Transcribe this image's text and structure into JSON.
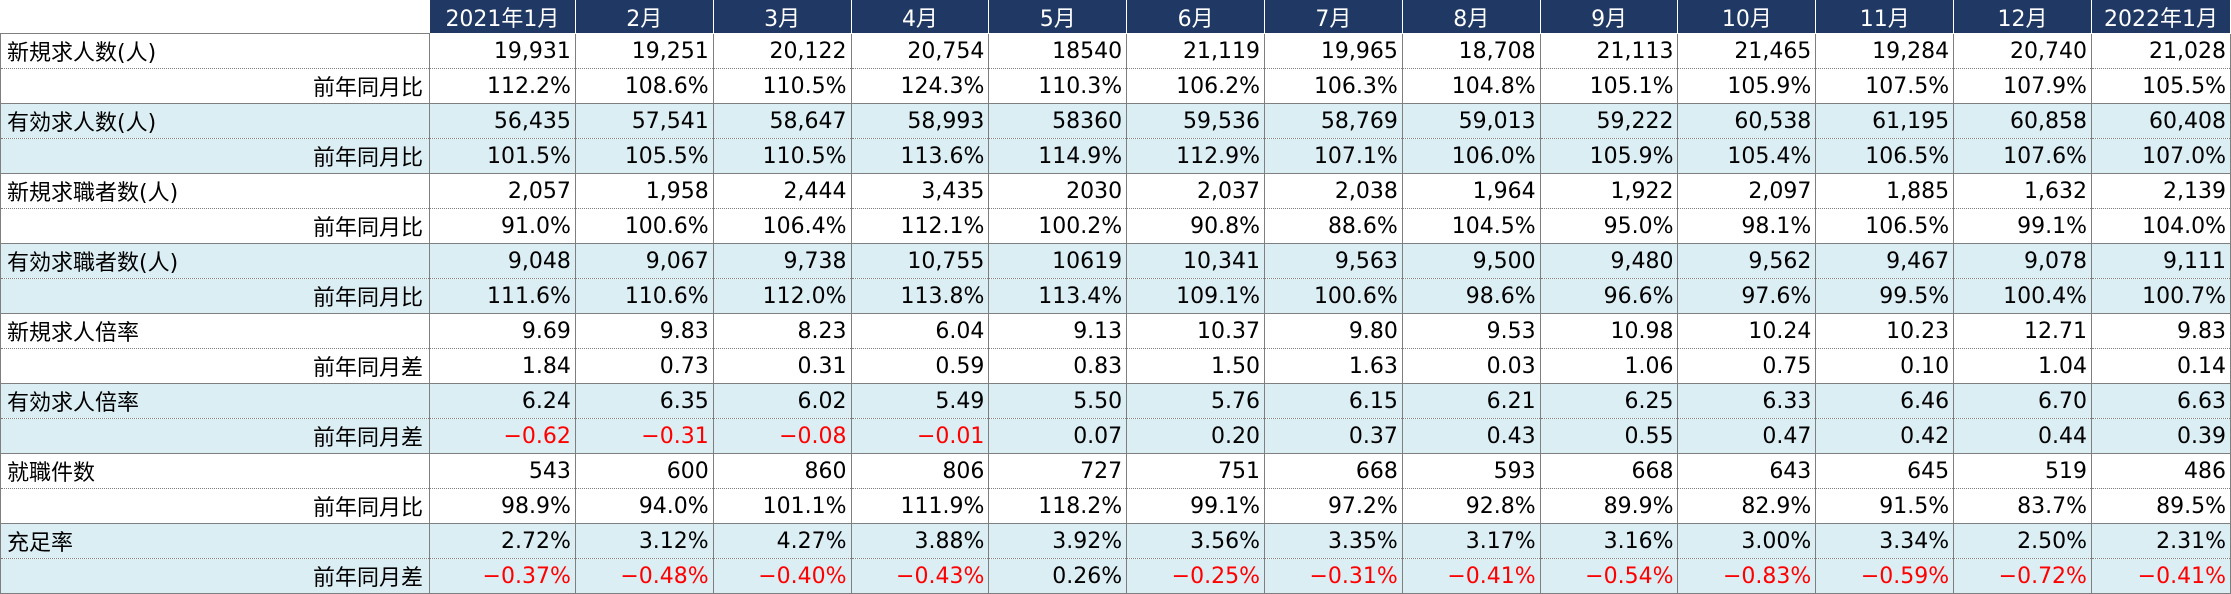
{
  "chart_data": {
    "type": "table",
    "columns": [
      "2021年1月",
      "2月",
      "3月",
      "4月",
      "5月",
      "6月",
      "7月",
      "8月",
      "9月",
      "10月",
      "11月",
      "12月",
      "2022年1月"
    ],
    "rows": [
      {
        "label": "新規求人数(人)",
        "values": [
          "19,931",
          "19,251",
          "20,122",
          "20,754",
          "18540",
          "21,119",
          "19,965",
          "18,708",
          "21,113",
          "21,465",
          "19,284",
          "20,740",
          "21,028"
        ],
        "shaded": false
      },
      {
        "label": "前年同月比",
        "values": [
          "112.2%",
          "108.6%",
          "110.5%",
          "124.3%",
          "110.3%",
          "106.2%",
          "106.3%",
          "104.8%",
          "105.1%",
          "105.9%",
          "107.5%",
          "107.9%",
          "105.5%"
        ],
        "shaded": false
      },
      {
        "label": "有効求人数(人)",
        "values": [
          "56,435",
          "57,541",
          "58,647",
          "58,993",
          "58360",
          "59,536",
          "58,769",
          "59,013",
          "59,222",
          "60,538",
          "61,195",
          "60,858",
          "60,408"
        ],
        "shaded": true
      },
      {
        "label": "前年同月比",
        "values": [
          "101.5%",
          "105.5%",
          "110.5%",
          "113.6%",
          "114.9%",
          "112.9%",
          "107.1%",
          "106.0%",
          "105.9%",
          "105.4%",
          "106.5%",
          "107.6%",
          "107.0%"
        ],
        "shaded": true
      },
      {
        "label": "新規求職者数(人)",
        "values": [
          "2,057",
          "1,958",
          "2,444",
          "3,435",
          "2030",
          "2,037",
          "2,038",
          "1,964",
          "1,922",
          "2,097",
          "1,885",
          "1,632",
          "2,139"
        ],
        "shaded": false
      },
      {
        "label": "前年同月比",
        "values": [
          "91.0%",
          "100.6%",
          "106.4%",
          "112.1%",
          "100.2%",
          "90.8%",
          "88.6%",
          "104.5%",
          "95.0%",
          "98.1%",
          "106.5%",
          "99.1%",
          "104.0%"
        ],
        "shaded": false
      },
      {
        "label": "有効求職者数(人)",
        "values": [
          "9,048",
          "9,067",
          "9,738",
          "10,755",
          "10619",
          "10,341",
          "9,563",
          "9,500",
          "9,480",
          "9,562",
          "9,467",
          "9,078",
          "9,111"
        ],
        "shaded": true
      },
      {
        "label": "前年同月比",
        "values": [
          "111.6%",
          "110.6%",
          "112.0%",
          "113.8%",
          "113.4%",
          "109.1%",
          "100.6%",
          "98.6%",
          "96.6%",
          "97.6%",
          "99.5%",
          "100.4%",
          "100.7%"
        ],
        "shaded": true
      },
      {
        "label": "新規求人倍率",
        "values": [
          "9.69",
          "9.83",
          "8.23",
          "6.04",
          "9.13",
          "10.37",
          "9.80",
          "9.53",
          "10.98",
          "10.24",
          "10.23",
          "12.71",
          "9.83"
        ],
        "shaded": false
      },
      {
        "label": "前年同月差",
        "values": [
          "1.84",
          "0.73",
          "0.31",
          "0.59",
          "0.83",
          "1.50",
          "1.63",
          "0.03",
          "1.06",
          "0.75",
          "0.10",
          "1.04",
          "0.14"
        ],
        "shaded": false
      },
      {
        "label": "有効求人倍率",
        "values": [
          "6.24",
          "6.35",
          "6.02",
          "5.49",
          "5.50",
          "5.76",
          "6.15",
          "6.21",
          "6.25",
          "6.33",
          "6.46",
          "6.70",
          "6.63"
        ],
        "shaded": true
      },
      {
        "label": "前年同月差",
        "values": [
          "−0.62",
          "−0.31",
          "−0.08",
          "−0.01",
          "0.07",
          "0.20",
          "0.37",
          "0.43",
          "0.55",
          "0.47",
          "0.42",
          "0.44",
          "0.39"
        ],
        "shaded": true
      },
      {
        "label": "就職件数",
        "values": [
          "543",
          "600",
          "860",
          "806",
          "727",
          "751",
          "668",
          "593",
          "668",
          "643",
          "645",
          "519",
          "486"
        ],
        "shaded": false
      },
      {
        "label": "前年同月比",
        "values": [
          "98.9%",
          "94.0%",
          "101.1%",
          "111.9%",
          "118.2%",
          "99.1%",
          "97.2%",
          "92.8%",
          "89.9%",
          "82.9%",
          "91.5%",
          "83.7%",
          "89.5%"
        ],
        "shaded": false
      },
      {
        "label": "充足率",
        "values": [
          "2.72%",
          "3.12%",
          "4.27%",
          "3.88%",
          "3.92%",
          "3.56%",
          "3.35%",
          "3.17%",
          "3.16%",
          "3.00%",
          "3.34%",
          "2.50%",
          "2.31%"
        ],
        "shaded": true
      },
      {
        "label": "前年同月差",
        "values": [
          "−0.37%",
          "−0.48%",
          "−0.40%",
          "−0.43%",
          "0.26%",
          "−0.25%",
          "−0.31%",
          "−0.41%",
          "−0.54%",
          "−0.83%",
          "−0.59%",
          "−0.72%",
          "−0.41%"
        ],
        "shaded": true
      }
    ]
  },
  "colors": {
    "header_bg": "#1f3864",
    "header_text": "#ffffff",
    "shade_bg": "#dbeef4",
    "negative_text": "#ff0000",
    "border": "#7f7f7f"
  }
}
